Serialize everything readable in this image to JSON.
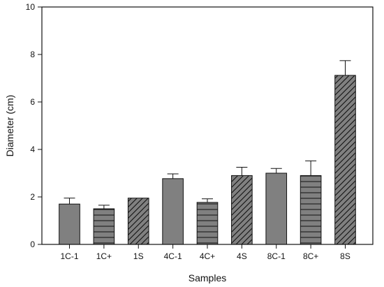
{
  "chart_data": {
    "type": "bar",
    "title": "",
    "xlabel": "Samples",
    "ylabel": "Diameter (cm)",
    "ylim": [
      0,
      10
    ],
    "yticks": [
      0,
      2,
      4,
      6,
      8,
      10
    ],
    "grid": false,
    "legend": "none",
    "bar_color": "#808080",
    "categories": [
      "1C-1",
      "1C+",
      "1S",
      "4C-1",
      "4C+",
      "4S",
      "8C-1",
      "8C+",
      "8S"
    ],
    "values": [
      1.7,
      1.5,
      1.95,
      2.77,
      1.77,
      2.9,
      3.0,
      2.9,
      7.12
    ],
    "errors": [
      0.25,
      0.15,
      0.0,
      0.2,
      0.15,
      0.35,
      0.2,
      0.62,
      0.62
    ],
    "patterns": [
      "solid",
      "horizontal-lines",
      "diagonal-hatch",
      "solid",
      "horizontal-lines",
      "diagonal-hatch",
      "solid",
      "horizontal-lines",
      "diagonal-hatch"
    ]
  }
}
